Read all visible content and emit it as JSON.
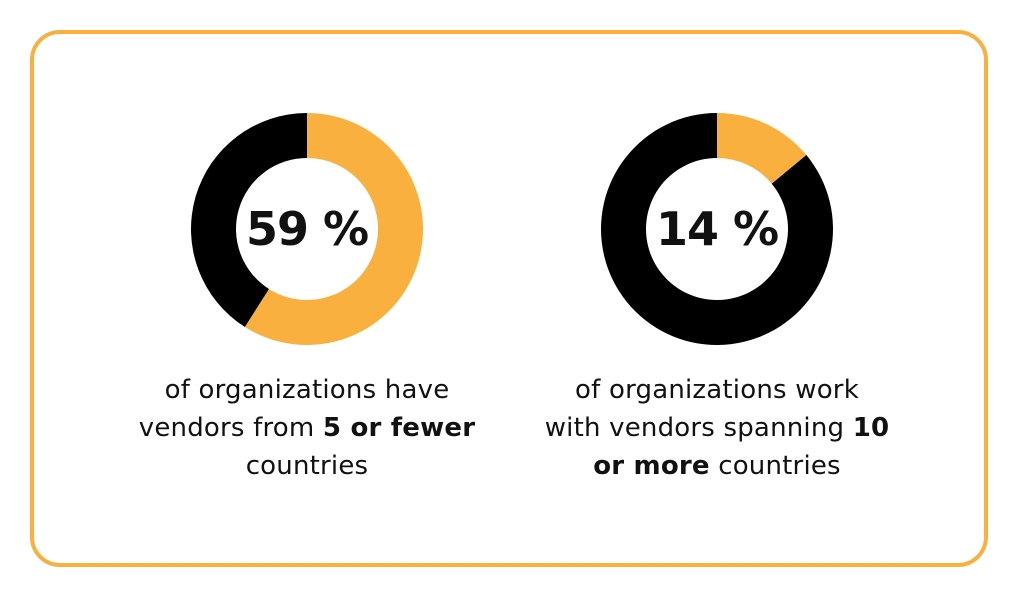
{
  "chart_data": [
    {
      "type": "pie",
      "value_label": "59 %",
      "values": [
        59,
        41
      ],
      "colors": [
        "#f9b03f",
        "#000000"
      ],
      "caption": {
        "line1": "of organizations have",
        "line2_pre": "vendors from ",
        "line2_bold": "5 or fewer",
        "line3": "countries"
      }
    },
    {
      "type": "pie",
      "value_label": "14 %",
      "values": [
        14,
        86
      ],
      "colors": [
        "#f9b03f",
        "#000000"
      ],
      "caption": {
        "line1": "of organizations work",
        "line2_pre": "with vendors spanning ",
        "line2_bold": "10",
        "line3_bold": "or more",
        "line3_post": " countries"
      }
    }
  ]
}
